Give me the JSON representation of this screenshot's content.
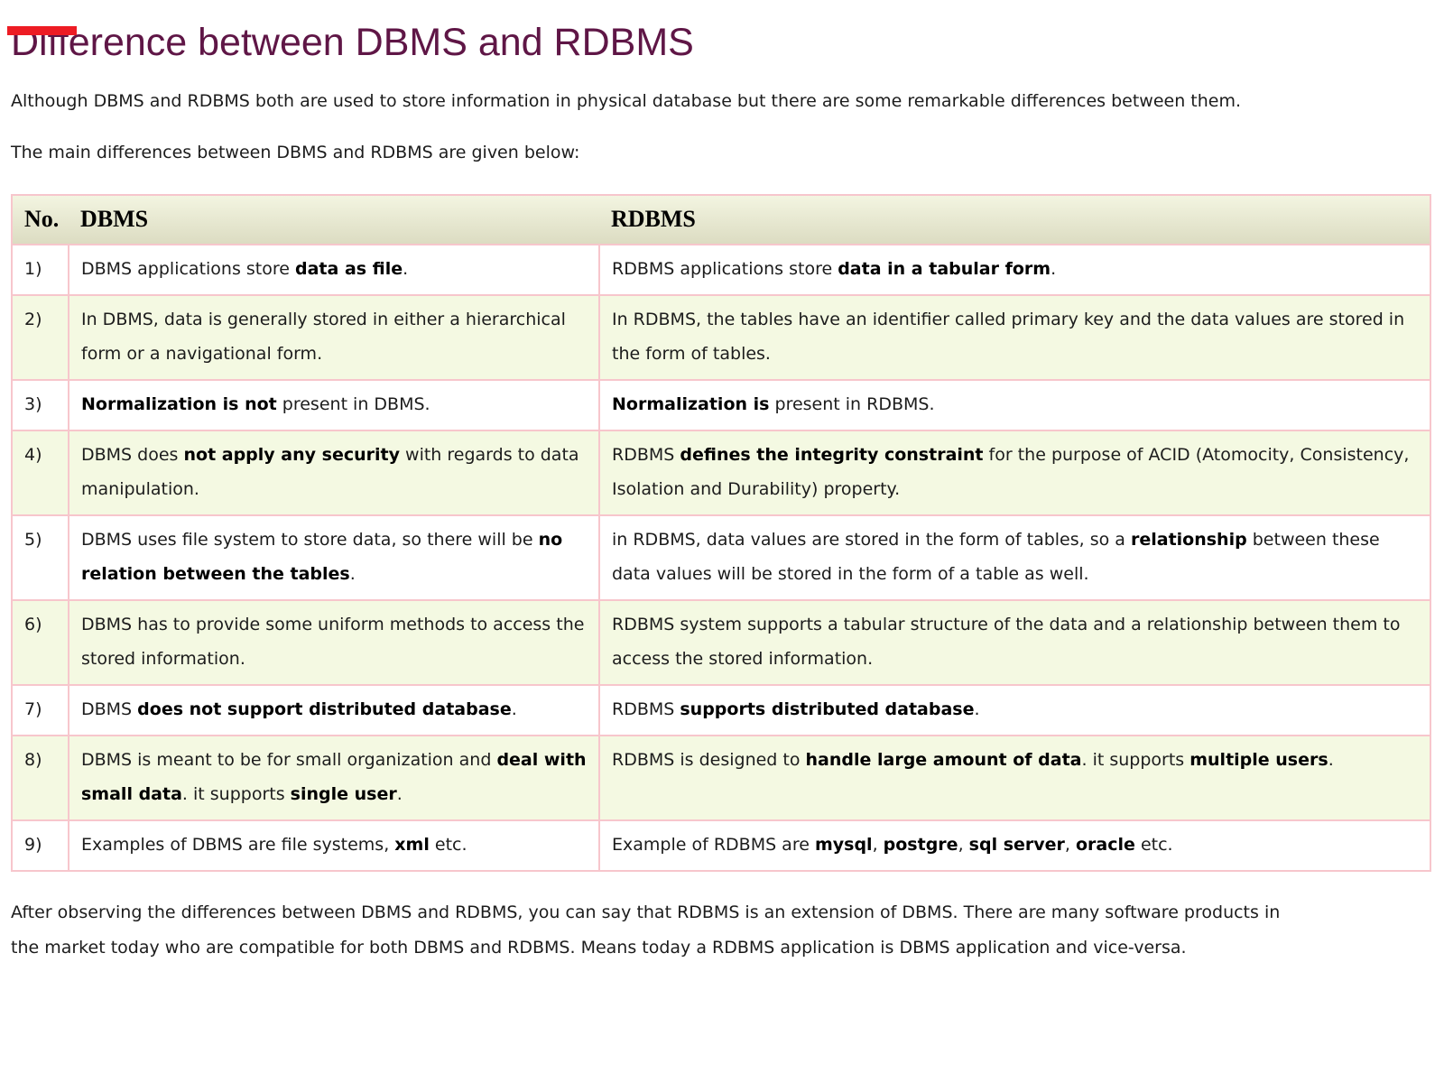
{
  "page": {
    "title": "Difference between DBMS and RDBMS",
    "intro": "Although DBMS and RDBMS both are used to store information in physical database but there are some remarkable differences between them.",
    "lead": "The main differences between DBMS and RDBMS are given below:",
    "conclusion": "After observing the differences between DBMS and RDBMS, you can say that RDBMS is an extension of DBMS. There are many software products in the market today who are compatible for both DBMS and RDBMS. Means today a RDBMS application is DBMS application and vice-versa."
  },
  "table": {
    "headers": [
      "No.",
      "DBMS",
      "RDBMS"
    ],
    "rows": [
      {
        "no": "1)",
        "dbms": [
          {
            "t": "DBMS applications store ",
            "b": false
          },
          {
            "t": "data as file",
            "b": true
          },
          {
            "t": ".",
            "b": false
          }
        ],
        "rdbms": [
          {
            "t": "RDBMS applications store ",
            "b": false
          },
          {
            "t": "data in a tabular form",
            "b": true
          },
          {
            "t": ".",
            "b": false
          }
        ]
      },
      {
        "no": "2)",
        "dbms": [
          {
            "t": "In DBMS, data is generally stored in either a hierarchical form or a navigational form.",
            "b": false
          }
        ],
        "rdbms": [
          {
            "t": "In RDBMS, the tables have an identifier called primary key and the data values are stored in the form of tables.",
            "b": false
          }
        ]
      },
      {
        "no": "3)",
        "dbms": [
          {
            "t": "Normalization is not",
            "b": true
          },
          {
            "t": " present in DBMS.",
            "b": false
          }
        ],
        "rdbms": [
          {
            "t": "Normalization is",
            "b": true
          },
          {
            "t": " present in RDBMS.",
            "b": false
          }
        ]
      },
      {
        "no": "4)",
        "dbms": [
          {
            "t": "DBMS does ",
            "b": false
          },
          {
            "t": "not apply any security",
            "b": true
          },
          {
            "t": " with regards to data manipulation.",
            "b": false
          }
        ],
        "rdbms": [
          {
            "t": "RDBMS ",
            "b": false
          },
          {
            "t": "defines the integrity constraint",
            "b": true
          },
          {
            "t": " for the purpose of ACID (Atomocity, Consistency, Isolation and Durability) property.",
            "b": false
          }
        ]
      },
      {
        "no": "5)",
        "dbms": [
          {
            "t": "DBMS uses file system to store data, so there will be ",
            "b": false
          },
          {
            "t": "no relation between the tables",
            "b": true
          },
          {
            "t": ".",
            "b": false
          }
        ],
        "rdbms": [
          {
            "t": "in RDBMS, data values are stored in the form of tables, so a ",
            "b": false
          },
          {
            "t": "relationship",
            "b": true
          },
          {
            "t": " between these data values will be stored in the form of a table as well.",
            "b": false
          }
        ]
      },
      {
        "no": "6)",
        "dbms": [
          {
            "t": "DBMS has to provide some uniform methods to access the stored information.",
            "b": false
          }
        ],
        "rdbms": [
          {
            "t": "RDBMS system supports a tabular structure of the data and a relationship between them to access the stored information.",
            "b": false
          }
        ]
      },
      {
        "no": "7)",
        "dbms": [
          {
            "t": "DBMS ",
            "b": false
          },
          {
            "t": "does not support distributed database",
            "b": true
          },
          {
            "t": ".",
            "b": false
          }
        ],
        "rdbms": [
          {
            "t": "RDBMS ",
            "b": false
          },
          {
            "t": "supports distributed database",
            "b": true
          },
          {
            "t": ".",
            "b": false
          }
        ]
      },
      {
        "no": "8)",
        "dbms": [
          {
            "t": "DBMS is meant to be for small organization and ",
            "b": false
          },
          {
            "t": "deal with small data",
            "b": true
          },
          {
            "t": ". it supports ",
            "b": false
          },
          {
            "t": "single user",
            "b": true
          },
          {
            "t": ".",
            "b": false
          }
        ],
        "rdbms": [
          {
            "t": "RDBMS is designed to ",
            "b": false
          },
          {
            "t": "handle large amount of data",
            "b": true
          },
          {
            "t": ". it supports ",
            "b": false
          },
          {
            "t": "multiple users",
            "b": true
          },
          {
            "t": ".",
            "b": false
          }
        ]
      },
      {
        "no": "9)",
        "dbms": [
          {
            "t": "Examples of DBMS are file systems, ",
            "b": false
          },
          {
            "t": "xml",
            "b": true
          },
          {
            "t": " etc.",
            "b": false
          }
        ],
        "rdbms": [
          {
            "t": "Example of RDBMS are ",
            "b": false
          },
          {
            "t": "mysql",
            "b": true
          },
          {
            "t": ", ",
            "b": false
          },
          {
            "t": "postgre",
            "b": true
          },
          {
            "t": ", ",
            "b": false
          },
          {
            "t": "sql server",
            "b": true
          },
          {
            "t": ", ",
            "b": false
          },
          {
            "t": "oracle",
            "b": true
          },
          {
            "t": " etc.",
            "b": false
          }
        ]
      }
    ]
  },
  "colors": {
    "title": "#5f1646",
    "text": "#1c1c1c",
    "table_border": "#f7c6cc",
    "row_alt_bg": "#f4f9e2",
    "header_bg_top": "#f3f5e1",
    "header_bg_bottom": "#dcdcc2",
    "red_bar": "#ed1c24"
  }
}
